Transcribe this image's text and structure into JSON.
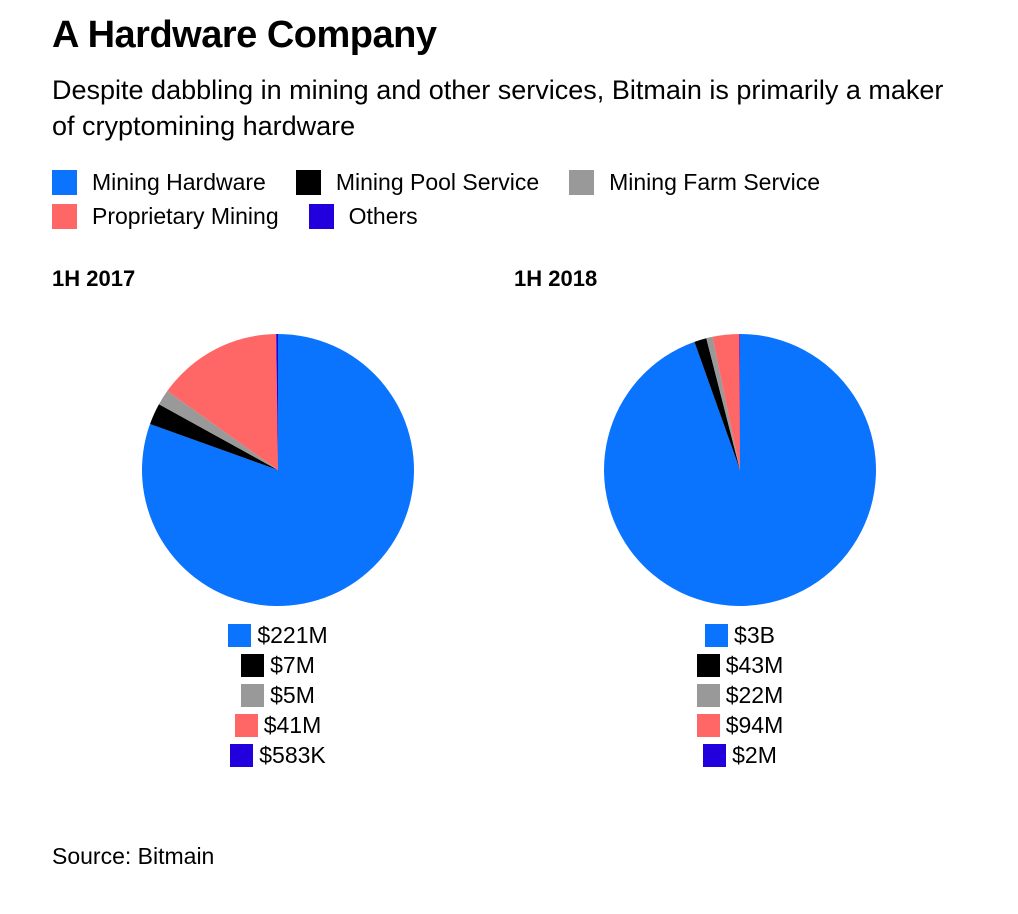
{
  "title": "A Hardware Company",
  "subtitle": "Despite dabbling in mining and other services, Bitmain is primarily a maker of cryptomining hardware",
  "source": "Source: Bitmain",
  "colors": {
    "Mining Hardware": "#0a74ff",
    "Mining Pool Service": "#000000",
    "Mining Farm Service": "#999999",
    "Proprietary Mining": "#ff6666",
    "Others": "#2200dd"
  },
  "chart_data": [
    {
      "type": "pie",
      "title": "1H 2017",
      "labels": [
        "Mining Hardware",
        "Mining Pool Service",
        "Mining Farm Service",
        "Proprietary Mining",
        "Others"
      ],
      "values": [
        221000000,
        7000000,
        5000000,
        41000000,
        583000
      ],
      "value_labels": [
        "$221M",
        "$7M",
        "$5M",
        "$41M",
        "$583K"
      ],
      "legend": [
        "Mining Hardware",
        "Mining Pool Service",
        "Mining Farm Service",
        "Proprietary Mining",
        "Others"
      ],
      "legend_position": "top-left"
    },
    {
      "type": "pie",
      "title": "1H 2018",
      "labels": [
        "Mining Hardware",
        "Mining Pool Service",
        "Mining Farm Service",
        "Proprietary Mining",
        "Others"
      ],
      "values": [
        2800000000,
        43000000,
        22000000,
        94000000,
        2000000
      ],
      "value_labels": [
        "$3B",
        "$43M",
        "$22M",
        "$94M",
        "$2M"
      ],
      "legend": [
        "Mining Hardware",
        "Mining Pool Service",
        "Mining Farm Service",
        "Proprietary Mining",
        "Others"
      ],
      "legend_position": "top-left"
    }
  ]
}
